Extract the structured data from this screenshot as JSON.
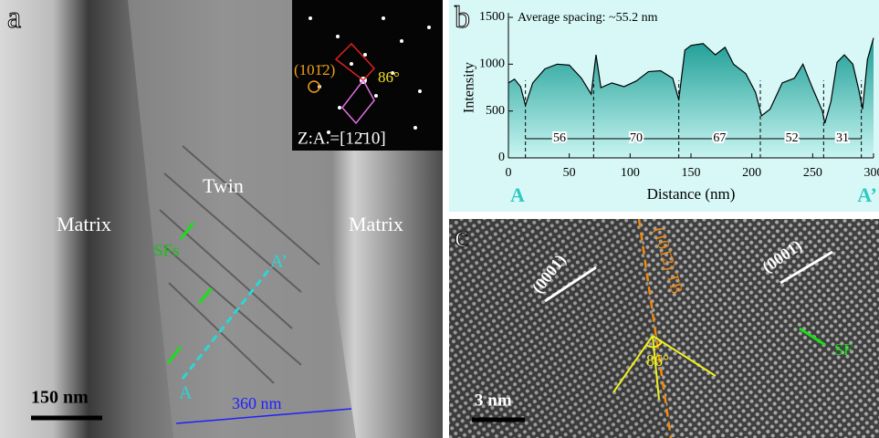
{
  "panel_a": {
    "label": "a",
    "matrix_left": "Matrix",
    "twin": "Twin",
    "matrix_right": "Matrix",
    "sfs": "SFs",
    "point_a": "A",
    "point_a_prime": "A’",
    "scale_bar": "150 nm",
    "width_label": "360 nm",
    "inset": {
      "plane": "(101̄2)",
      "angle": "86°",
      "zone_axis": "Z:A.=[12̄10]"
    }
  },
  "chart_data": {
    "type": "area",
    "panel_label": "b",
    "title": "Average spacing: ~55.2 nm",
    "x_label": "Distance (nm)",
    "y_label": "Intensity",
    "start_label": "A",
    "end_label": "A’",
    "x": [
      0,
      5,
      10,
      14,
      20,
      30,
      40,
      50,
      60,
      68,
      72,
      76,
      85,
      95,
      105,
      115,
      125,
      135,
      140,
      145,
      150,
      160,
      170,
      178,
      185,
      195,
      203,
      208,
      215,
      225,
      235,
      242,
      250,
      258,
      260,
      265,
      270,
      276,
      283,
      288,
      291,
      295,
      300
    ],
    "values": [
      800,
      840,
      760,
      560,
      800,
      950,
      1000,
      990,
      850,
      680,
      1100,
      750,
      800,
      760,
      820,
      920,
      930,
      850,
      620,
      1150,
      1200,
      1220,
      1100,
      1180,
      1000,
      900,
      700,
      450,
      520,
      800,
      850,
      1000,
      740,
      500,
      370,
      600,
      1020,
      1100,
      1000,
      720,
      520,
      1050,
      1280
    ],
    "color": "#2fc9c0",
    "xlim": [
      0,
      300
    ],
    "ylim": [
      0,
      1500
    ],
    "xticks": [
      0,
      50,
      100,
      150,
      200,
      250,
      300
    ],
    "yticks": [
      0,
      500,
      1000,
      1500
    ],
    "boundaries": [
      14,
      70,
      140,
      207,
      259,
      290
    ],
    "spacings": [
      56,
      70,
      67,
      52,
      31
    ]
  },
  "panel_c": {
    "label": "c",
    "plane_left": "(0001)",
    "plane_right": "(0001)",
    "boundary": "(101̄2) TB",
    "angle": "86°",
    "sf": "SF",
    "scale_bar": "3 nm"
  }
}
